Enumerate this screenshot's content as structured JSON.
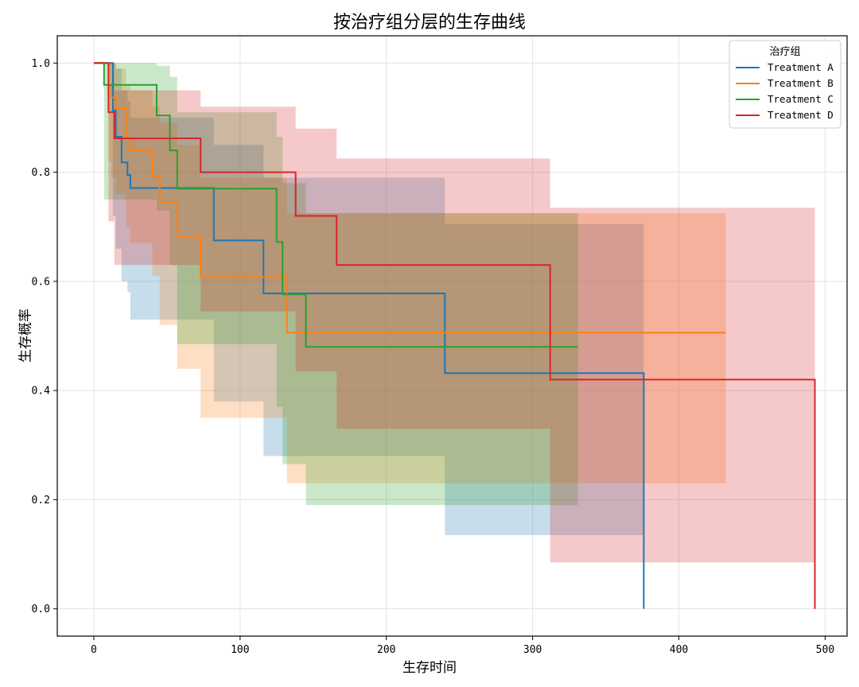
{
  "chart_data": {
    "type": "line",
    "subtype": "kaplan-meier step survival curves with confidence bands",
    "title": "按治疗组分层的生存曲线",
    "xlabel": "生存时间",
    "ylabel": "生存概率",
    "xlim": [
      -25,
      515
    ],
    "ylim": [
      -0.05,
      1.05
    ],
    "xticks": [
      0,
      100,
      200,
      300,
      400,
      500
    ],
    "yticks": [
      0.0,
      0.2,
      0.4,
      0.6,
      0.8,
      1.0
    ],
    "xtick_labels": [
      "0",
      "100",
      "200",
      "300",
      "400",
      "500"
    ],
    "ytick_labels": [
      "0.0",
      "0.2",
      "0.4",
      "0.6",
      "0.8",
      "1.0"
    ],
    "grid": true,
    "legend": {
      "title": "治疗组",
      "position": "top-right"
    },
    "series": [
      {
        "name": "Treatment A",
        "color": "#1f77b4",
        "x": [
          0,
          13,
          15,
          19,
          23,
          25,
          82,
          116,
          240,
          376
        ],
        "y": [
          1.0,
          0.913,
          0.865,
          0.818,
          0.795,
          0.771,
          0.675,
          0.578,
          0.432,
          0.0
        ],
        "lo": [
          1.0,
          0.72,
          0.66,
          0.6,
          0.58,
          0.53,
          0.38,
          0.28,
          0.135,
          0.0
        ],
        "hi": [
          1.0,
          1.0,
          0.99,
          0.95,
          0.93,
          0.9,
          0.85,
          0.79,
          0.705,
          0.0
        ]
      },
      {
        "name": "Treatment B",
        "color": "#ff7f0e",
        "x": [
          0,
          10,
          12,
          15,
          22,
          25,
          40,
          45,
          57,
          73,
          132,
          432
        ],
        "y": [
          1.0,
          0.958,
          0.937,
          0.916,
          0.864,
          0.84,
          0.792,
          0.745,
          0.683,
          0.608,
          0.506,
          0.506
        ],
        "lo": [
          1.0,
          0.82,
          0.79,
          0.76,
          0.7,
          0.67,
          0.61,
          0.52,
          0.44,
          0.35,
          0.23,
          0.23
        ],
        "hi": [
          1.0,
          1.0,
          1.0,
          0.99,
          0.96,
          0.95,
          0.92,
          0.89,
          0.85,
          0.79,
          0.725,
          0.725
        ]
      },
      {
        "name": "Treatment C",
        "color": "#2ca02c",
        "x": [
          0,
          7,
          43,
          52,
          57,
          125,
          129,
          145,
          331
        ],
        "y": [
          1.0,
          0.96,
          0.904,
          0.84,
          0.77,
          0.672,
          0.576,
          0.48,
          0.48
        ],
        "lo": [
          1.0,
          0.75,
          0.73,
          0.63,
          0.485,
          0.37,
          0.265,
          0.19,
          0.19
        ],
        "hi": [
          1.0,
          1.0,
          0.995,
          0.975,
          0.91,
          0.865,
          0.78,
          0.725,
          0.725
        ]
      },
      {
        "name": "Treatment D",
        "color": "#d62728",
        "x": [
          0,
          10,
          14,
          73,
          138,
          166,
          312,
          493
        ],
        "y": [
          1.0,
          0.91,
          0.862,
          0.8,
          0.72,
          0.63,
          0.42,
          0.0
        ],
        "lo": [
          1.0,
          0.71,
          0.63,
          0.545,
          0.435,
          0.33,
          0.085,
          0.0
        ],
        "hi": [
          1.0,
          1.0,
          0.95,
          0.92,
          0.88,
          0.825,
          0.735,
          0.0
        ]
      }
    ]
  }
}
